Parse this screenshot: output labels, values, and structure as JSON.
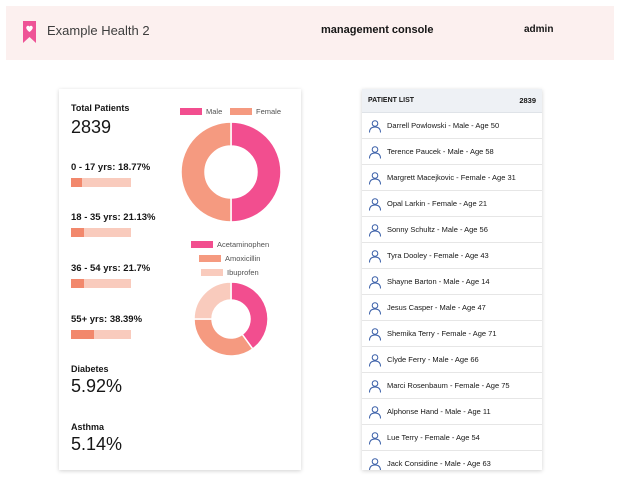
{
  "header": {
    "app_title": "Example Health 2",
    "console_label": "management console",
    "user_label": "admin",
    "brand_color": "#ee5396"
  },
  "stats": {
    "total_patients_label": "Total Patients",
    "total_patients_value": "2839",
    "age_groups": [
      {
        "label": "0 - 17 yrs: 18.77%",
        "percent": 18.77
      },
      {
        "label": "18 - 35 yrs: 21.13%",
        "percent": 21.13
      },
      {
        "label": "36 - 54 yrs: 21.7%",
        "percent": 21.7
      },
      {
        "label": "55+ yrs: 38.39%",
        "percent": 38.39
      }
    ],
    "diabetes_label": "Diabetes",
    "diabetes_value": "5.92%",
    "asthma_label": "Asthma",
    "asthma_value": "5.14%"
  },
  "chart_data": [
    {
      "type": "pie",
      "title": "",
      "categories": [
        "Male",
        "Female"
      ],
      "values": [
        50,
        50
      ],
      "colors": [
        "#f24e8f",
        "#f59a80"
      ],
      "legend": "top"
    },
    {
      "type": "pie",
      "title": "",
      "categories": [
        "Acetaminophen",
        "Amoxicillin",
        "Ibuprofen"
      ],
      "values": [
        40,
        35,
        25
      ],
      "colors": [
        "#f24e8f",
        "#f59a80",
        "#f9cbbd"
      ],
      "legend": "top"
    }
  ],
  "patient_list": {
    "title": "PATIENT LIST",
    "count": "2839",
    "patients": [
      "Darrell Powlowski - Male - Age 50",
      "Terence Paucek - Male - Age 58",
      "Margrett Macejkovic - Female - Age 31",
      "Opal Larkin - Female - Age 21",
      "Sonny Schultz - Male - Age 56",
      "Tyra Dooley - Female - Age 43",
      "Shayne Barton - Male - Age 14",
      "Jesus Casper - Male - Age 47",
      "Shemika Terry - Female - Age 71",
      "Clyde Ferry - Male - Age 66",
      "Marci Rosenbaum - Female - Age 75",
      "Alphonse Hand - Male - Age 11",
      "Lue Terry - Female - Age 54",
      "Jack Considine - Male - Age 63"
    ]
  }
}
